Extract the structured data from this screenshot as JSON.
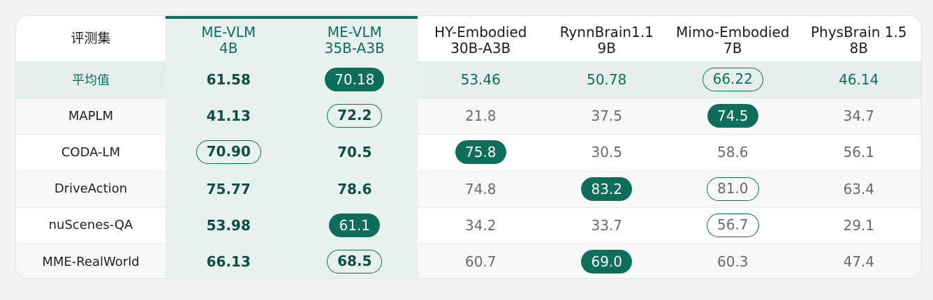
{
  "chart_data": {
    "type": "table",
    "corner_label": "评测集",
    "columns": [
      {
        "line1": "ME-VLM",
        "line2": "4B",
        "highlight": true
      },
      {
        "line1": "ME-VLM",
        "line2": "35B-A3B",
        "highlight": true
      },
      {
        "line1": "HY-Embodied",
        "line2": "30B-A3B",
        "highlight": false
      },
      {
        "line1": "RynnBrain1.1",
        "line2": "9B",
        "highlight": false
      },
      {
        "line1": "Mimo-Embodied",
        "line2": "7B",
        "highlight": false
      },
      {
        "line1": "PhysBrain 1.5",
        "line2": "8B",
        "highlight": false
      }
    ],
    "rows": [
      {
        "label": "平均值",
        "values": [
          "61.58",
          "70.18",
          "53.46",
          "50.78",
          "66.22",
          "46.14"
        ],
        "best": 1,
        "second": 4
      },
      {
        "label": "MAPLM",
        "values": [
          "41.13",
          "72.2",
          "21.8",
          "37.5",
          "74.5",
          "34.7"
        ],
        "best": 4,
        "second": 1
      },
      {
        "label": "CODA-LM",
        "values": [
          "70.90",
          "70.5",
          "75.8",
          "30.5",
          "58.6",
          "56.1"
        ],
        "best": 2,
        "second": 0
      },
      {
        "label": "DriveAction",
        "values": [
          "75.77",
          "78.6",
          "74.8",
          "83.2",
          "81.0",
          "63.4"
        ],
        "best": 3,
        "second": 4
      },
      {
        "label": "nuScenes-QA",
        "values": [
          "53.98",
          "61.1",
          "34.2",
          "33.7",
          "56.7",
          "29.1"
        ],
        "best": 1,
        "second": 4
      },
      {
        "label": "MME-RealWorld",
        "values": [
          "66.13",
          "68.5",
          "60.7",
          "69.0",
          "60.3",
          "47.4"
        ],
        "best": 3,
        "second": 1
      }
    ],
    "colors": {
      "accent": "#0e6e5c",
      "highlight_column_bg": "#e7f1ee",
      "average_row_bg": "#e6efec"
    }
  }
}
